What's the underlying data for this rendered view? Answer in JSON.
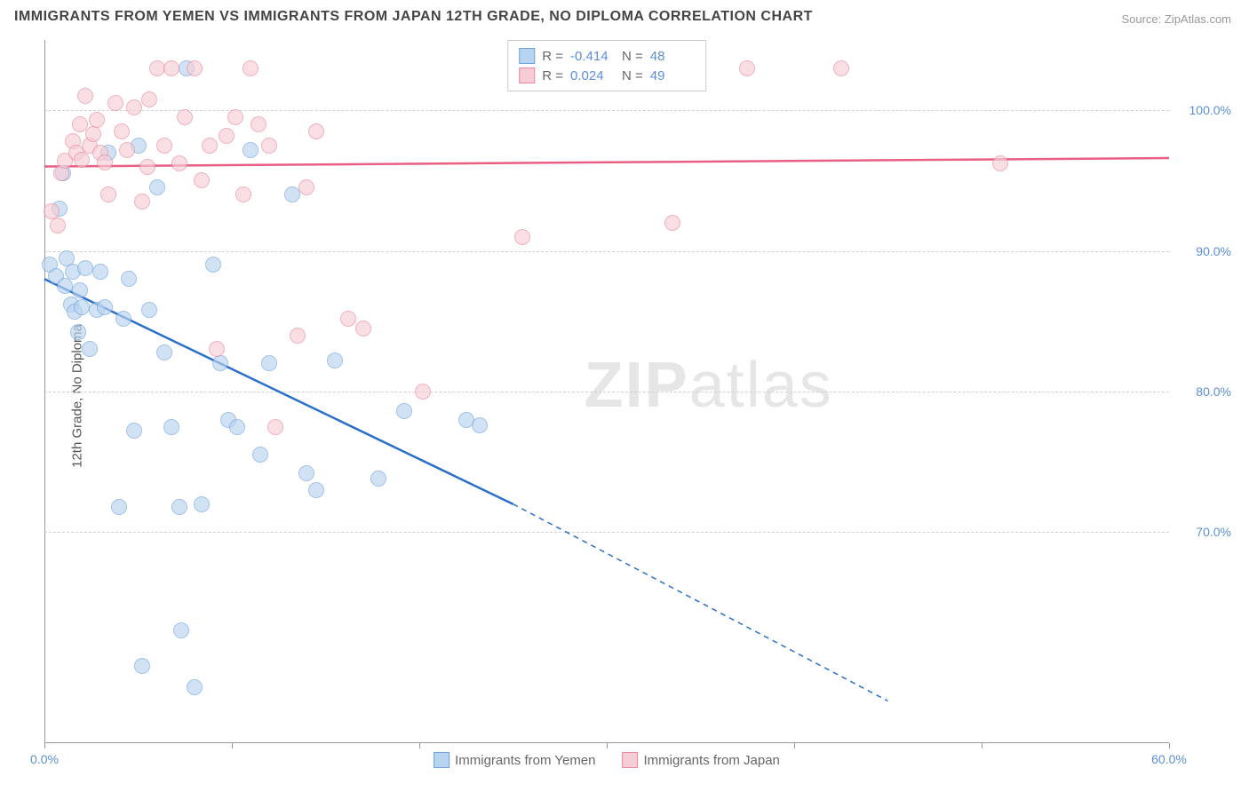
{
  "title": "IMMIGRANTS FROM YEMEN VS IMMIGRANTS FROM JAPAN 12TH GRADE, NO DIPLOMA CORRELATION CHART",
  "source": "Source: ZipAtlas.com",
  "ylabel": "12th Grade, No Diploma",
  "watermark_bold": "ZIP",
  "watermark_light": "atlas",
  "chart": {
    "type": "scatter",
    "xlim": [
      0,
      60
    ],
    "ylim": [
      55,
      105
    ],
    "xticks": [
      0,
      10,
      20,
      30,
      40,
      50,
      60
    ],
    "xtick_labels": [
      "0.0%",
      "",
      "",
      "",
      "",
      "",
      "60.0%"
    ],
    "yticks": [
      70,
      80,
      90,
      100
    ],
    "ytick_labels": [
      "70.0%",
      "80.0%",
      "90.0%",
      "100.0%"
    ],
    "grid_color": "#d0d0d0",
    "background_color": "#ffffff",
    "marker_radius": 9,
    "series": [
      {
        "name": "Immigrants from Yemen",
        "color_fill": "#b9d4f0",
        "color_stroke": "#6fa3dd",
        "line_color": "#2c6fc9",
        "R": "-0.414",
        "N": "48",
        "regression": {
          "x1": 0,
          "y1": 88,
          "x2_solid": 25,
          "y2_solid": 72,
          "x2_dash": 45,
          "y2_dash": 58
        },
        "points": [
          [
            0.3,
            89
          ],
          [
            0.6,
            88.2
          ],
          [
            0.8,
            93
          ],
          [
            1.0,
            95.5
          ],
          [
            1.1,
            87.5
          ],
          [
            1.2,
            89.5
          ],
          [
            1.4,
            86.2
          ],
          [
            1.5,
            88.5
          ],
          [
            1.6,
            85.7
          ],
          [
            1.8,
            84.2
          ],
          [
            1.9,
            87.2
          ],
          [
            2.0,
            86.0
          ],
          [
            2.2,
            88.8
          ],
          [
            2.4,
            83.0
          ],
          [
            2.8,
            85.8
          ],
          [
            3.0,
            88.5
          ],
          [
            3.2,
            86.0
          ],
          [
            3.4,
            97.0
          ],
          [
            4.0,
            71.8
          ],
          [
            4.2,
            85.2
          ],
          [
            4.5,
            88.0
          ],
          [
            4.8,
            77.2
          ],
          [
            5.0,
            97.5
          ],
          [
            5.2,
            60.5
          ],
          [
            5.6,
            85.8
          ],
          [
            6.0,
            94.5
          ],
          [
            6.4,
            82.8
          ],
          [
            6.8,
            77.5
          ],
          [
            7.2,
            71.8
          ],
          [
            7.3,
            63.0
          ],
          [
            7.6,
            103.0
          ],
          [
            8.0,
            59.0
          ],
          [
            8.4,
            72.0
          ],
          [
            9.0,
            89.0
          ],
          [
            9.4,
            82.0
          ],
          [
            9.8,
            78.0
          ],
          [
            10.3,
            77.5
          ],
          [
            11.0,
            97.2
          ],
          [
            11.5,
            75.5
          ],
          [
            12.0,
            82.0
          ],
          [
            13.2,
            94.0
          ],
          [
            14.0,
            74.2
          ],
          [
            14.5,
            73.0
          ],
          [
            15.5,
            82.2
          ],
          [
            17.8,
            73.8
          ],
          [
            19.2,
            78.6
          ],
          [
            22.5,
            78.0
          ],
          [
            23.2,
            77.6
          ]
        ]
      },
      {
        "name": "Immigrants from Japan",
        "color_fill": "#f6cdd6",
        "color_stroke": "#e88ba0",
        "line_color": "#e85f83",
        "R": "0.024",
        "N": "49",
        "regression": {
          "x1": 0,
          "y1": 96,
          "x2_solid": 60,
          "y2_solid": 96.6,
          "x2_dash": 60,
          "y2_dash": 96.6
        },
        "points": [
          [
            0.4,
            92.8
          ],
          [
            0.7,
            91.8
          ],
          [
            0.9,
            95.5
          ],
          [
            1.1,
            96.4
          ],
          [
            1.5,
            97.8
          ],
          [
            1.7,
            97.0
          ],
          [
            1.9,
            99.0
          ],
          [
            2.0,
            96.5
          ],
          [
            2.2,
            101.0
          ],
          [
            2.4,
            97.5
          ],
          [
            2.6,
            98.3
          ],
          [
            2.8,
            99.3
          ],
          [
            3.0,
            97.0
          ],
          [
            3.2,
            96.3
          ],
          [
            3.4,
            94.0
          ],
          [
            3.8,
            100.5
          ],
          [
            4.1,
            98.5
          ],
          [
            4.4,
            97.2
          ],
          [
            4.8,
            100.2
          ],
          [
            5.2,
            93.5
          ],
          [
            5.5,
            96.0
          ],
          [
            5.6,
            100.8
          ],
          [
            6.0,
            103.0
          ],
          [
            6.4,
            97.5
          ],
          [
            6.8,
            103.0
          ],
          [
            7.2,
            96.2
          ],
          [
            7.5,
            99.5
          ],
          [
            8.0,
            103.0
          ],
          [
            8.4,
            95.0
          ],
          [
            8.8,
            97.5
          ],
          [
            9.2,
            83.0
          ],
          [
            9.7,
            98.2
          ],
          [
            10.2,
            99.5
          ],
          [
            10.6,
            94.0
          ],
          [
            11.0,
            103.0
          ],
          [
            11.4,
            99.0
          ],
          [
            12.0,
            97.5
          ],
          [
            12.3,
            77.5
          ],
          [
            13.5,
            84.0
          ],
          [
            14.0,
            94.5
          ],
          [
            14.5,
            98.5
          ],
          [
            16.2,
            85.2
          ],
          [
            17.0,
            84.5
          ],
          [
            20.2,
            80.0
          ],
          [
            25.5,
            91.0
          ],
          [
            33.5,
            92.0
          ],
          [
            37.5,
            103.0
          ],
          [
            42.5,
            103.0
          ],
          [
            51.0,
            96.2
          ]
        ]
      }
    ]
  },
  "legend_bottom": [
    {
      "label": "Immigrants from Yemen",
      "fill": "#b9d4f0",
      "stroke": "#6fa3dd"
    },
    {
      "label": "Immigrants from Japan",
      "fill": "#f6cdd6",
      "stroke": "#e88ba0"
    }
  ],
  "legend_top_labels": {
    "R": "R =",
    "N": "N ="
  }
}
